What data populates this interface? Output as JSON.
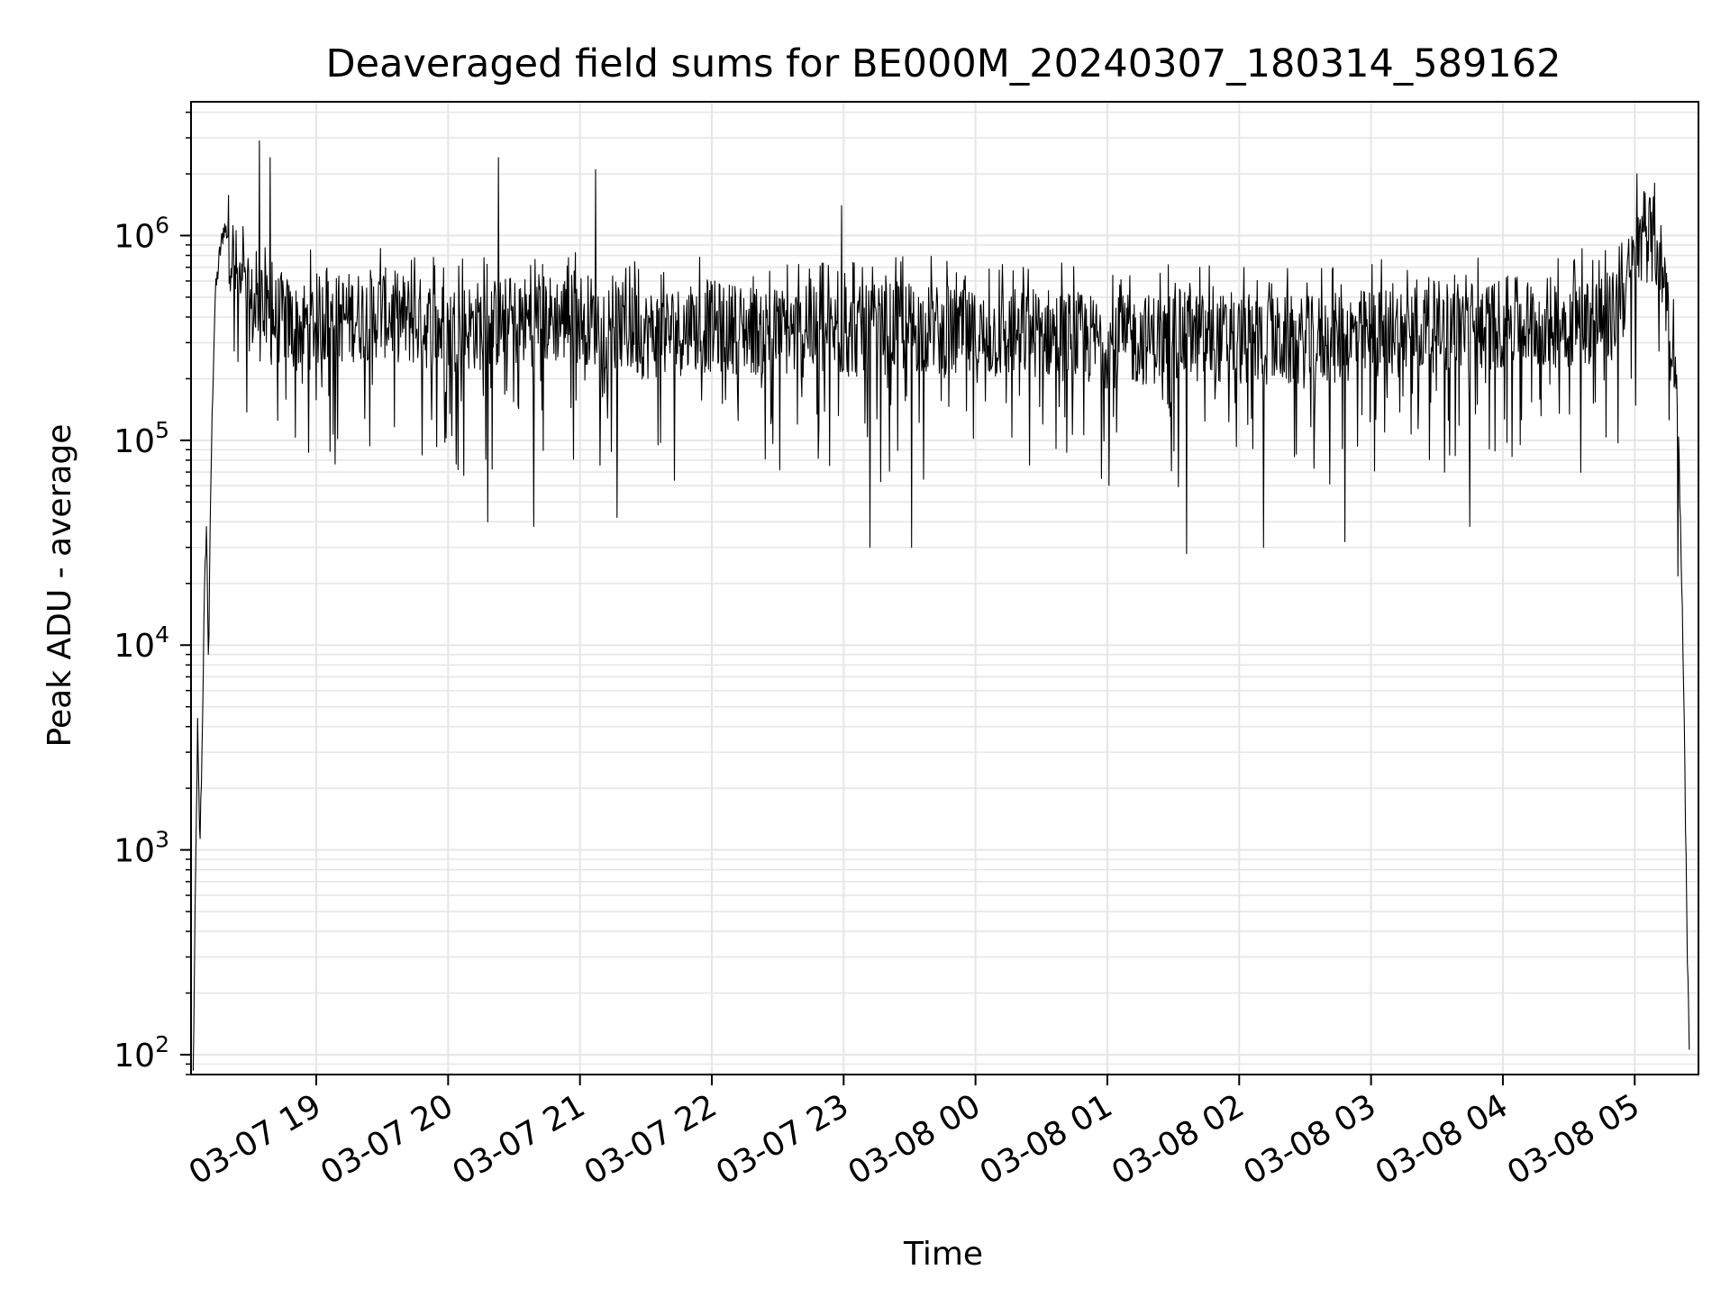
{
  "chart_data": {
    "type": "line",
    "title": "Deaveraged field sums for BE000M_20240307_180314_589162",
    "xlabel": "Time",
    "ylabel": "Peak ADU - average",
    "yscale": "log",
    "ylim": [
      80,
      4500000
    ],
    "xlim": [
      "2024-03-07 18:03",
      "2024-03-08 05:29"
    ],
    "grid": true,
    "line_color": "#000000",
    "grid_color": "#e6e6e6",
    "x_ticks": [
      {
        "t": "2024-03-07 19:00",
        "label": "03-07 19"
      },
      {
        "t": "2024-03-07 20:00",
        "label": "03-07 20"
      },
      {
        "t": "2024-03-07 21:00",
        "label": "03-07 21"
      },
      {
        "t": "2024-03-07 22:00",
        "label": "03-07 22"
      },
      {
        "t": "2024-03-07 23:00",
        "label": "03-07 23"
      },
      {
        "t": "2024-03-08 00:00",
        "label": "03-08 00"
      },
      {
        "t": "2024-03-08 01:00",
        "label": "03-08 01"
      },
      {
        "t": "2024-03-08 02:00",
        "label": "03-08 02"
      },
      {
        "t": "2024-03-08 03:00",
        "label": "03-08 03"
      },
      {
        "t": "2024-03-08 04:00",
        "label": "03-08 04"
      },
      {
        "t": "2024-03-08 05:00",
        "label": "03-08 05"
      }
    ],
    "y_ticks": [
      {
        "value": 100,
        "base": "10",
        "exp": "2"
      },
      {
        "value": 1000,
        "base": "10",
        "exp": "3"
      },
      {
        "value": 10000,
        "base": "10",
        "exp": "4"
      },
      {
        "value": 100000,
        "base": "10",
        "exp": "5"
      },
      {
        "value": 1000000,
        "base": "10",
        "exp": "6"
      }
    ],
    "series": [
      {
        "x": [
          "2024-03-07 18:04",
          "2024-03-07 18:05",
          "2024-03-07 18:06",
          "2024-03-07 18:07",
          "2024-03-07 18:08",
          "2024-03-07 18:09",
          "2024-03-07 18:10",
          "2024-03-07 18:11",
          "2024-03-07 18:12",
          "2024-03-07 18:13",
          "2024-03-07 18:14",
          "2024-03-07 18:16",
          "2024-03-07 18:18",
          "2024-03-07 18:20",
          "2024-03-07 18:23",
          "2024-03-07 18:26",
          "2024-03-07 18:30",
          "2024-03-07 18:35",
          "2024-03-07 18:40",
          "2024-03-07 18:45",
          "2024-03-07 18:50",
          "2024-03-07 19:00",
          "2024-03-07 19:15",
          "2024-03-07 19:30",
          "2024-03-07 19:45",
          "2024-03-07 20:00",
          "2024-03-07 20:30",
          "2024-03-07 21:00",
          "2024-03-07 21:30",
          "2024-03-07 22:00",
          "2024-03-07 22:30",
          "2024-03-07 23:00",
          "2024-03-07 23:30",
          "2024-03-08 00:00",
          "2024-03-08 00:30",
          "2024-03-08 01:00",
          "2024-03-08 01:30",
          "2024-03-08 02:00",
          "2024-03-08 02:30",
          "2024-03-08 03:00",
          "2024-03-08 03:30",
          "2024-03-08 04:00",
          "2024-03-08 04:30",
          "2024-03-08 04:50",
          "2024-03-08 05:00",
          "2024-03-08 05:05",
          "2024-03-08 05:10",
          "2024-03-08 05:15",
          "2024-03-08 05:18",
          "2024-03-08 05:20",
          "2024-03-08 05:22",
          "2024-03-08 05:24",
          "2024-03-08 05:25"
        ],
        "y": [
          80,
          600,
          4000,
          1000,
          3000,
          15000,
          40000,
          8000,
          60000,
          200000,
          500000,
          800000,
          1100000,
          1000000,
          700000,
          500000,
          450000,
          400000,
          380000,
          400000,
          350000,
          380000,
          400000,
          420000,
          380000,
          350000,
          380000,
          400000,
          330000,
          360000,
          340000,
          330000,
          360000,
          320000,
          340000,
          300000,
          320000,
          310000,
          300000,
          330000,
          360000,
          370000,
          380000,
          400000,
          700000,
          1000000,
          900000,
          500000,
          300000,
          100000,
          10000,
          300,
          80
        ]
      }
    ],
    "noise": {
      "typical_range": [
        100000,
        900000
      ],
      "spike_highs": [
        {
          "t": "2024-03-07 18:34",
          "y": 2900000
        },
        {
          "t": "2024-03-07 18:39",
          "y": 2400000
        },
        {
          "t": "2024-03-07 20:23",
          "y": 2400000
        },
        {
          "t": "2024-03-07 21:07",
          "y": 2100000
        },
        {
          "t": "2024-03-07 22:59",
          "y": 1400000
        },
        {
          "t": "2024-03-08 05:01",
          "y": 2000000
        }
      ],
      "dip_lows": [
        {
          "t": "2024-03-07 20:18",
          "y": 40000
        },
        {
          "t": "2024-03-07 20:39",
          "y": 38000
        },
        {
          "t": "2024-03-07 21:17",
          "y": 42000
        },
        {
          "t": "2024-03-07 23:12",
          "y": 30000
        },
        {
          "t": "2024-03-07 23:31",
          "y": 30000
        },
        {
          "t": "2024-03-08 01:36",
          "y": 28000
        },
        {
          "t": "2024-03-08 02:11",
          "y": 30000
        },
        {
          "t": "2024-03-08 02:48",
          "y": 32000
        },
        {
          "t": "2024-03-08 03:45",
          "y": 38000
        }
      ]
    }
  }
}
